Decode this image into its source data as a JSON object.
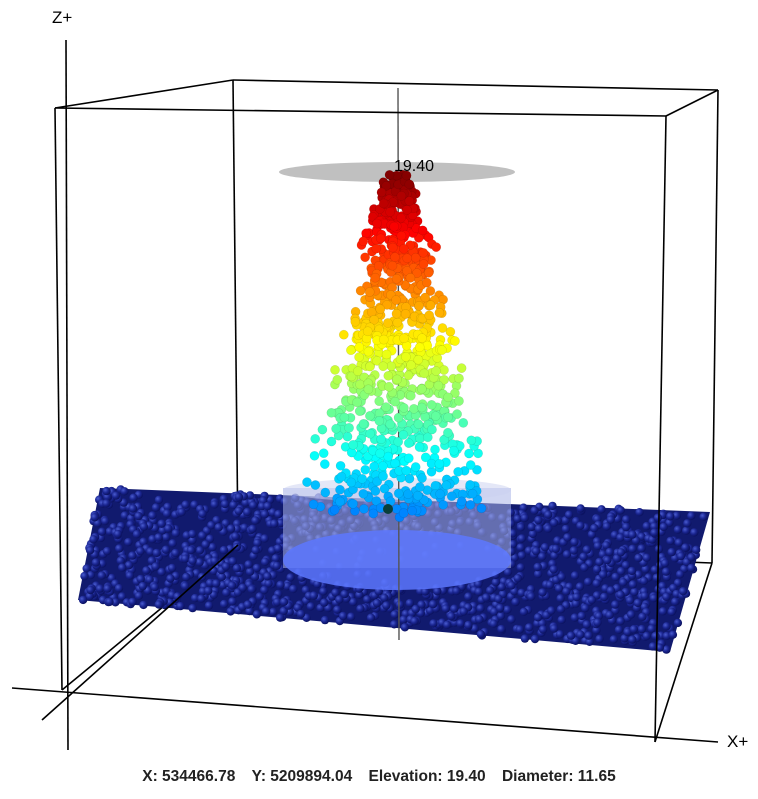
{
  "viewer": {
    "axis_z_label": "Z+",
    "axis_x_label": "X+",
    "tree_height_label": "19.40"
  },
  "status": {
    "x": "X: 534466.78",
    "y": "Y: 5209894.04",
    "elevation": "Elevation: 19.40",
    "diameter": "Diameter: 11.65"
  },
  "colors": {
    "ground_points": "#14207a",
    "selection_cylinder": "#6f8cff",
    "crown_top_disc": "#b0b0b0",
    "box_edges": "#000000",
    "stem_axis": "#555555"
  }
}
